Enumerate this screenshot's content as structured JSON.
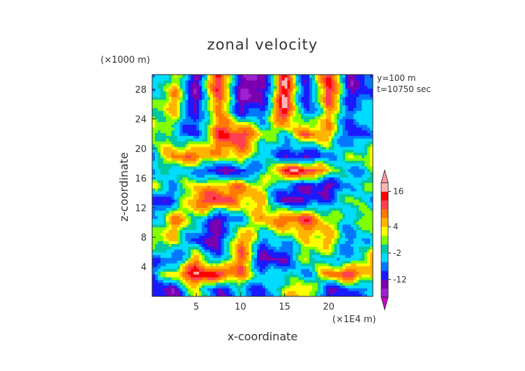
{
  "chart_data": {
    "type": "heatmap",
    "title": "zonal velocity",
    "xlabel": "x-coordinate",
    "ylabel": "z-coordinate",
    "x_unit": "(×1E4 m)",
    "y_unit": "(×1000 m)",
    "annotations": [
      "y=100 m",
      "t=10750 sec"
    ],
    "xlim": [
      0,
      25
    ],
    "ylim": [
      0,
      30
    ],
    "x_ticks": [
      5,
      10,
      15,
      20
    ],
    "y_ticks": [
      4,
      8,
      12,
      16,
      20,
      24,
      28
    ],
    "colorbar": {
      "levels": [
        -20,
        -16,
        -12,
        -8,
        -5,
        -2,
        0,
        2,
        4,
        7,
        10,
        13,
        16,
        20
      ],
      "labeled_ticks": [
        16,
        4,
        -2,
        -12
      ],
      "extend": "both",
      "colors": [
        "#c800c8",
        "#a020d0",
        "#7a00b0",
        "#1a1aff",
        "#0078ff",
        "#00dcff",
        "#00c8a0",
        "#80ff00",
        "#ffff00",
        "#ffb400",
        "#ff7800",
        "#ff4050",
        "#ff0000",
        "#ffb4b4",
        "#ff9aa2"
      ]
    },
    "field_bands": [
      {
        "z": 29.0,
        "values": [
          -8,
          4,
          -14,
          16,
          -14,
          -16,
          16,
          -12,
          16,
          -14,
          -8
        ]
      },
      {
        "z": 27.0,
        "values": [
          -4,
          8,
          -16,
          14,
          -16,
          -14,
          18,
          -14,
          14,
          -12,
          -6
        ]
      },
      {
        "z": 25.0,
        "values": [
          0,
          4,
          -12,
          8,
          -10,
          -8,
          16,
          -10,
          6,
          -8,
          0
        ]
      },
      {
        "z": 22.0,
        "values": [
          4,
          -4,
          -10,
          12,
          14,
          2,
          -2,
          10,
          6,
          -12,
          -4
        ]
      },
      {
        "z": 19.0,
        "values": [
          -4,
          8,
          10,
          4,
          6,
          -4,
          -10,
          -14,
          -6,
          0,
          4
        ]
      },
      {
        "z": 17.0,
        "values": [
          -6,
          -2,
          -6,
          -14,
          -12,
          -4,
          14,
          16,
          4,
          -6,
          -2
        ]
      },
      {
        "z": 15.0,
        "values": [
          2,
          -4,
          4,
          6,
          8,
          2,
          -6,
          -12,
          -14,
          -4,
          0
        ]
      },
      {
        "z": 13.0,
        "values": [
          -12,
          -8,
          10,
          14,
          6,
          4,
          -14,
          -12,
          -8,
          2,
          -6
        ]
      },
      {
        "z": 10.5,
        "values": [
          -6,
          8,
          0,
          -14,
          -4,
          6,
          10,
          12,
          2,
          -4,
          4
        ]
      },
      {
        "z": 7.5,
        "values": [
          4,
          2,
          -10,
          -14,
          10,
          -6,
          -4,
          2,
          6,
          -8,
          -2
        ]
      },
      {
        "z": 5.0,
        "values": [
          -6,
          -10,
          8,
          -8,
          12,
          -14,
          -12,
          2,
          -4,
          -6,
          8
        ]
      },
      {
        "z": 3.0,
        "values": [
          -8,
          6,
          16,
          14,
          8,
          -4,
          -2,
          -6,
          8,
          14,
          2
        ]
      },
      {
        "z": 1.0,
        "values": [
          -10,
          -14,
          4,
          -12,
          -4,
          -10,
          2,
          6,
          -12,
          -8,
          -6
        ]
      }
    ]
  }
}
